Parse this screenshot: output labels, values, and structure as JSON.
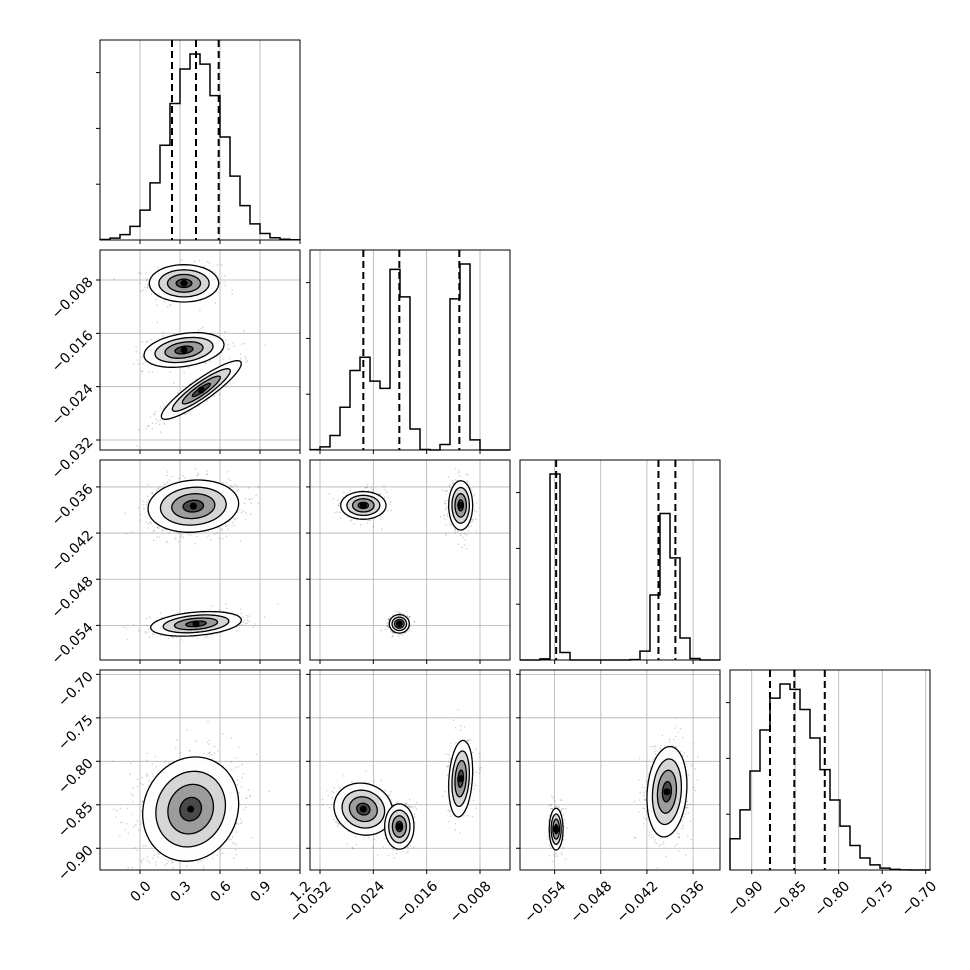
{
  "chart_data": {
    "type": "corner",
    "grid": true,
    "parameters": [
      {
        "range": [
          -0.3,
          1.2
        ],
        "ticks": [
          0.0,
          0.3,
          0.6,
          0.9,
          1.2
        ],
        "tick_labels": [
          "0.0",
          "0.3",
          "0.6",
          "0.9",
          "1.2"
        ],
        "quantiles": [
          0.24,
          0.42,
          0.59
        ],
        "modes": [
          {
            "mu": 0.42,
            "sigma": 0.2,
            "w": 1.0
          }
        ]
      },
      {
        "range": [
          -0.0335,
          -0.0035
        ],
        "ticks": [
          -0.032,
          -0.024,
          -0.016,
          -0.008
        ],
        "tick_labels": [
          "−0.032",
          "−0.024",
          "−0.016",
          "−0.008"
        ],
        "quantiles": [
          -0.0255,
          -0.0201,
          -0.0111
        ],
        "modes": [
          {
            "mu": -0.0255,
            "sigma": 0.0022,
            "w": 0.32
          },
          {
            "mu": -0.0201,
            "sigma": 0.0011,
            "w": 0.35
          },
          {
            "mu": -0.0109,
            "sigma": 0.00085,
            "w": 0.33
          }
        ]
      },
      {
        "range": [
          -0.0585,
          -0.0325
        ],
        "ticks": [
          -0.054,
          -0.048,
          -0.042,
          -0.036
        ],
        "tick_labels": [
          "−0.054",
          "−0.048",
          "−0.042",
          "−0.036"
        ],
        "quantiles": [
          -0.0538,
          -0.0405,
          -0.0383
        ],
        "modes": [
          {
            "mu": -0.0538,
            "sigma": 0.00045,
            "w": 0.33
          },
          {
            "mu": -0.0394,
            "sigma": 0.0012,
            "w": 0.67
          }
        ]
      },
      {
        "range": [
          -0.925,
          -0.695
        ],
        "ticks": [
          -0.9,
          -0.85,
          -0.8,
          -0.75,
          -0.7
        ],
        "tick_labels": [
          "−0.90",
          "−0.85",
          "−0.80",
          "−0.75",
          "−0.70"
        ],
        "quantiles": [
          -0.879,
          -0.851,
          -0.816
        ],
        "modes": [
          {
            "mu": -0.87,
            "sigma": 0.028,
            "w": 0.6
          },
          {
            "mu": -0.83,
            "sigma": 0.03,
            "w": 0.4
          }
        ]
      }
    ],
    "joint_clusters": [
      {
        "pair": [
          0,
          1
        ],
        "clusters": [
          {
            "mx": 0.33,
            "my": -0.0085,
            "sx": 0.13,
            "sy": 0.0014,
            "rho": 0.0,
            "n": 1300
          },
          {
            "mx": 0.33,
            "my": -0.0185,
            "sx": 0.15,
            "sy": 0.0013,
            "rho": 0.3,
            "n": 1000
          },
          {
            "mx": 0.46,
            "my": -0.0245,
            "sx": 0.15,
            "sy": 0.0022,
            "rho": 0.9,
            "n": 1400
          }
        ]
      },
      {
        "pair": [
          0,
          2
        ],
        "clusters": [
          {
            "mx": 0.4,
            "my": -0.0385,
            "sx": 0.17,
            "sy": 0.0017,
            "rho": 0.1,
            "n": 2600
          },
          {
            "mx": 0.42,
            "my": -0.0538,
            "sx": 0.17,
            "sy": 0.0008,
            "rho": 0.3,
            "n": 1300
          }
        ]
      },
      {
        "pair": [
          1,
          2
        ],
        "clusters": [
          {
            "mx": -0.0255,
            "my": -0.0384,
            "sx": 0.0017,
            "sy": 0.0009,
            "rho": 0.0,
            "n": 1200
          },
          {
            "mx": -0.0109,
            "my": -0.0384,
            "sx": 0.0009,
            "sy": 0.0016,
            "rho": 0.0,
            "n": 1200
          },
          {
            "mx": -0.0201,
            "my": -0.0538,
            "sx": 0.00075,
            "sy": 0.0006,
            "rho": 0.0,
            "n": 1200
          }
        ]
      },
      {
        "pair": [
          0,
          3
        ],
        "clusters": [
          {
            "mx": 0.38,
            "my": -0.855,
            "sx": 0.18,
            "sy": 0.03,
            "rho": 0.1,
            "n": 3600
          }
        ]
      },
      {
        "pair": [
          1,
          3
        ],
        "clusters": [
          {
            "mx": -0.0255,
            "my": -0.855,
            "sx": 0.0022,
            "sy": 0.015,
            "rho": -0.1,
            "n": 1200
          },
          {
            "mx": -0.0201,
            "my": -0.875,
            "sx": 0.0011,
            "sy": 0.013,
            "rho": 0.0,
            "n": 1200
          },
          {
            "mx": -0.0109,
            "my": -0.82,
            "sx": 0.0009,
            "sy": 0.022,
            "rho": 0.2,
            "n": 1200
          }
        ]
      },
      {
        "pair": [
          2,
          3
        ],
        "clusters": [
          {
            "mx": -0.0538,
            "my": -0.878,
            "sx": 0.00045,
            "sy": 0.012,
            "rho": 0.0,
            "n": 1200
          },
          {
            "mx": -0.0394,
            "my": -0.835,
            "sx": 0.0013,
            "sy": 0.026,
            "rho": 0.15,
            "n": 2400
          }
        ]
      }
    ]
  }
}
